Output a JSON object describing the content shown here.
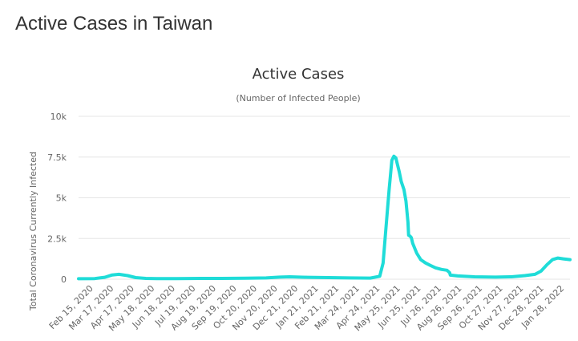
{
  "page": {
    "heading": "Active Cases in Taiwan"
  },
  "colors": {
    "line": "#1fdcd8",
    "grid": "#e6e6e6",
    "text": "#333333",
    "axis_text": "#666666"
  },
  "chart_data": {
    "type": "line",
    "title": "Active Cases",
    "subtitle": "(Number of Infected People)",
    "xlabel": "",
    "ylabel": "Total Coronavirus Currently Infected",
    "ylim": [
      0,
      10000
    ],
    "yticks": [
      0,
      2500,
      5000,
      7500,
      10000
    ],
    "ytick_labels": [
      "0",
      "2.5k",
      "5k",
      "7.5k",
      "10k"
    ],
    "xlim": [
      "2020-02-15",
      "2022-02-15"
    ],
    "xtick_labels": [
      "Feb 15, 2020",
      "Mar 17, 2020",
      "Apr 17, 2020",
      "May 18, 2020",
      "Jun 18, 2020",
      "Jul 19, 2020",
      "Aug 19, 2020",
      "Sep 19, 2020",
      "Oct 20, 2020",
      "Nov 20, 2020",
      "Dec 21, 2020",
      "Jan 21, 2021",
      "Feb 21, 2021",
      "Mar 24, 2021",
      "Apr 24, 2021",
      "May 25, 2021",
      "Jun 25, 2021",
      "Jul 26, 2021",
      "Aug 26, 2021",
      "Sep 26, 2021",
      "Oct 27, 2021",
      "Nov 27, 2021",
      "Dec 28, 2021",
      "Jan 28, 2022"
    ],
    "grid": true,
    "legend": false,
    "series": [
      {
        "x": [
          "2020-02-15",
          "2020-03-10",
          "2020-03-25",
          "2020-04-05",
          "2020-04-15",
          "2020-04-28",
          "2020-05-10",
          "2020-05-25",
          "2020-06-10",
          "2020-07-10",
          "2020-08-15",
          "2020-09-15",
          "2020-10-20",
          "2020-11-20",
          "2020-12-10",
          "2020-12-25",
          "2021-01-20",
          "2021-02-21",
          "2021-03-24",
          "2021-04-24",
          "2021-05-08",
          "2021-05-13",
          "2021-05-17",
          "2021-05-22",
          "2021-05-26",
          "2021-05-29",
          "2021-06-01",
          "2021-06-03",
          "2021-06-06",
          "2021-06-09",
          "2021-06-13",
          "2021-06-16",
          "2021-06-19",
          "2021-06-20",
          "2021-06-22",
          "2021-06-24",
          "2021-06-26",
          "2021-07-02",
          "2021-07-08",
          "2021-07-15",
          "2021-07-22",
          "2021-07-30",
          "2021-08-08",
          "2021-08-16",
          "2021-08-20",
          "2021-08-21",
          "2021-09-01",
          "2021-09-26",
          "2021-10-27",
          "2021-11-20",
          "2021-12-10",
          "2021-12-25",
          "2022-01-03",
          "2022-01-12",
          "2022-01-20",
          "2022-01-28",
          "2022-02-05",
          "2022-02-15"
        ],
        "values": [
          30,
          40,
          120,
          260,
          300,
          220,
          100,
          50,
          40,
          40,
          50,
          50,
          60,
          80,
          130,
          150,
          120,
          100,
          80,
          70,
          180,
          1000,
          3000,
          5500,
          7300,
          7550,
          7450,
          7100,
          6600,
          6000,
          5500,
          4800,
          3500,
          2700,
          2650,
          2550,
          2200,
          1600,
          1200,
          1000,
          850,
          700,
          600,
          550,
          400,
          250,
          200,
          150,
          130,
          150,
          220,
          300,
          500,
          900,
          1200,
          1300,
          1250,
          1200
        ]
      }
    ]
  }
}
